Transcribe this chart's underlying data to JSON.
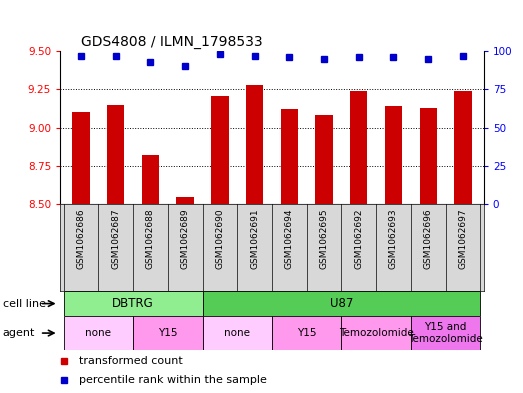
{
  "title": "GDS4808 / ILMN_1798533",
  "samples": [
    "GSM1062686",
    "GSM1062687",
    "GSM1062688",
    "GSM1062689",
    "GSM1062690",
    "GSM1062691",
    "GSM1062694",
    "GSM1062695",
    "GSM1062692",
    "GSM1062693",
    "GSM1062696",
    "GSM1062697"
  ],
  "transformed_count": [
    9.1,
    9.15,
    8.82,
    8.55,
    9.21,
    9.28,
    9.12,
    9.08,
    9.24,
    9.14,
    9.13,
    9.24
  ],
  "percentile_rank": [
    97,
    97,
    93,
    90,
    98,
    97,
    96,
    95,
    96,
    96,
    95,
    97
  ],
  "ylim_left": [
    8.5,
    9.5
  ],
  "ylim_right": [
    0,
    100
  ],
  "yticks_left": [
    8.5,
    8.75,
    9.0,
    9.25,
    9.5
  ],
  "yticks_right": [
    0,
    25,
    50,
    75,
    100
  ],
  "bar_color": "#cc0000",
  "dot_color": "#0000cc",
  "cell_line_groups": [
    {
      "text": "DBTRG",
      "start": 0,
      "end": 3,
      "color": "#90ee90"
    },
    {
      "text": "U87",
      "start": 4,
      "end": 11,
      "color": "#55cc55"
    }
  ],
  "agent_groups": [
    {
      "text": "none",
      "start": 0,
      "end": 1,
      "color": "#ffccff"
    },
    {
      "text": "Y15",
      "start": 2,
      "end": 3,
      "color": "#ff99ee"
    },
    {
      "text": "none",
      "start": 4,
      "end": 5,
      "color": "#ffccff"
    },
    {
      "text": "Y15",
      "start": 6,
      "end": 7,
      "color": "#ff99ee"
    },
    {
      "text": "Temozolomide",
      "start": 8,
      "end": 9,
      "color": "#ff99ee"
    },
    {
      "text": "Y15 and\nTemozolomide",
      "start": 10,
      "end": 11,
      "color": "#ee77ee"
    }
  ],
  "legend_items": [
    {
      "label": "transformed count",
      "color": "#cc0000"
    },
    {
      "label": "percentile rank within the sample",
      "color": "#0000cc"
    }
  ],
  "grid_yticks": [
    8.75,
    9.0,
    9.25
  ],
  "bar_width": 0.5,
  "xlim": [
    -0.6,
    11.6
  ]
}
